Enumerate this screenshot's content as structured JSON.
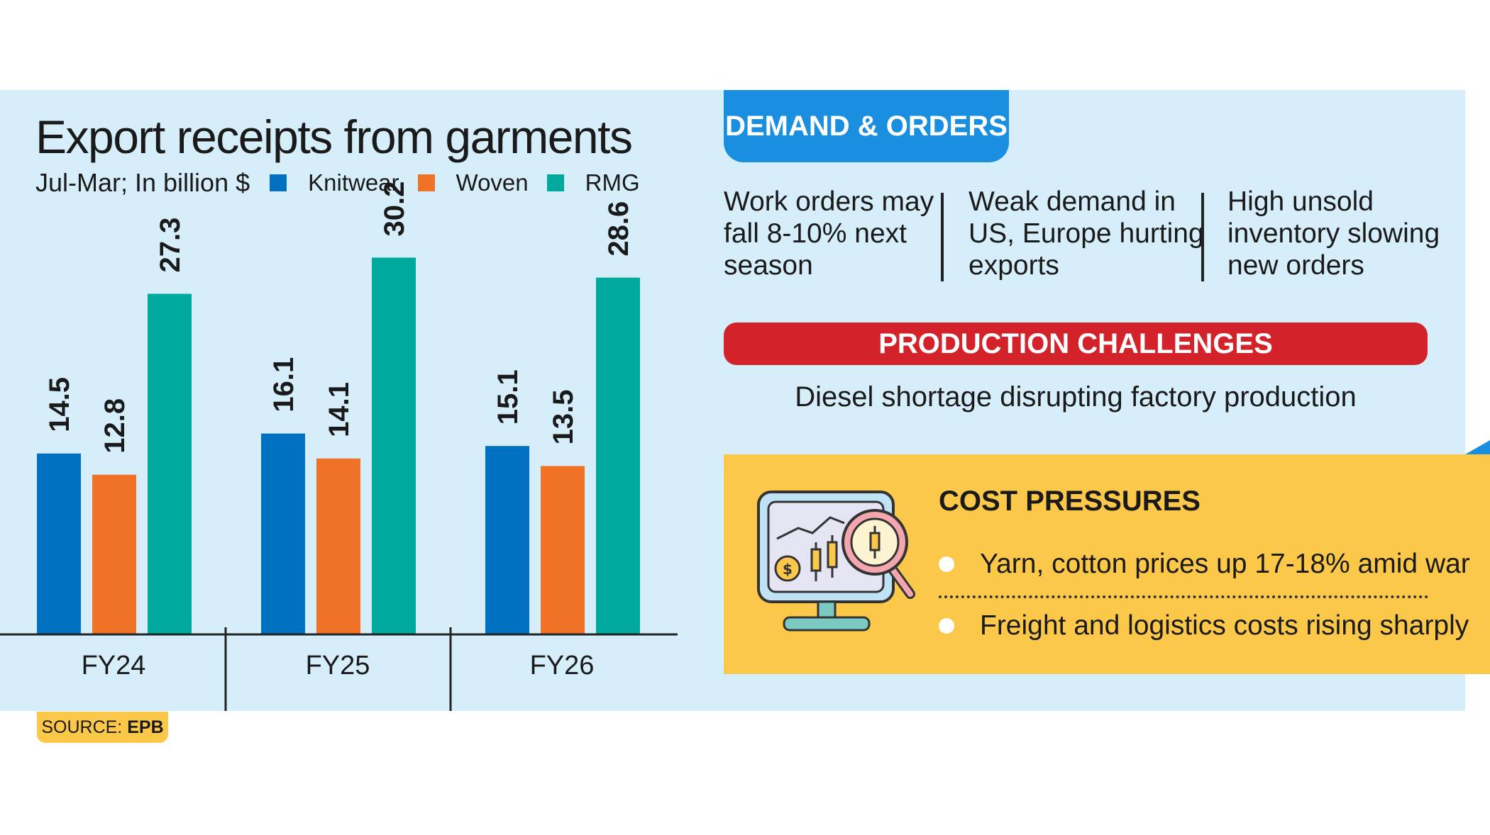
{
  "title": "Export receipts from garments",
  "subtitle": "Jul-Mar; In billion $",
  "source": {
    "label": "SOURCE:",
    "value": "EPB"
  },
  "colors": {
    "Knitwear": "#0070c0",
    "Woven": "#f07227",
    "RMG": "#00a99d",
    "panel": "#d6eef9",
    "accent_blue": "#1a8fe0",
    "accent_red": "#d3222a",
    "accent_yellow": "#fcc84a"
  },
  "chart_data": {
    "type": "bar",
    "title": "Export receipts from garments",
    "subtitle": "Jul-Mar; In billion $",
    "categories": [
      "FY24",
      "FY25",
      "FY26"
    ],
    "series": [
      {
        "name": "Knitwear",
        "values": [
          14.5,
          16.1,
          15.1
        ]
      },
      {
        "name": "Woven",
        "values": [
          12.8,
          14.1,
          13.5
        ]
      },
      {
        "name": "RMG",
        "values": [
          27.3,
          30.2,
          28.6
        ]
      }
    ],
    "ylim": [
      0,
      30.2
    ],
    "grid": false,
    "legend": "top",
    "value_labels": "rotated above bars"
  },
  "demand": {
    "heading": "DEMAND & ORDERS",
    "items": [
      [
        "Work orders may",
        "fall 8-10% next",
        "season"
      ],
      [
        "Weak demand in",
        "US, Europe hurting",
        "exports"
      ],
      [
        "High unsold",
        "inventory slowing",
        "new orders"
      ]
    ]
  },
  "production": {
    "heading": "PRODUCTION CHALLENGES",
    "text": "Diesel shortage disrupting factory production"
  },
  "cost": {
    "heading": "COST PRESSURES",
    "icon": "monitor-chart-magnifier-icon",
    "items": [
      "Yarn, cotton prices up 17-18% amid war",
      "Freight and logistics costs rising sharply"
    ]
  }
}
